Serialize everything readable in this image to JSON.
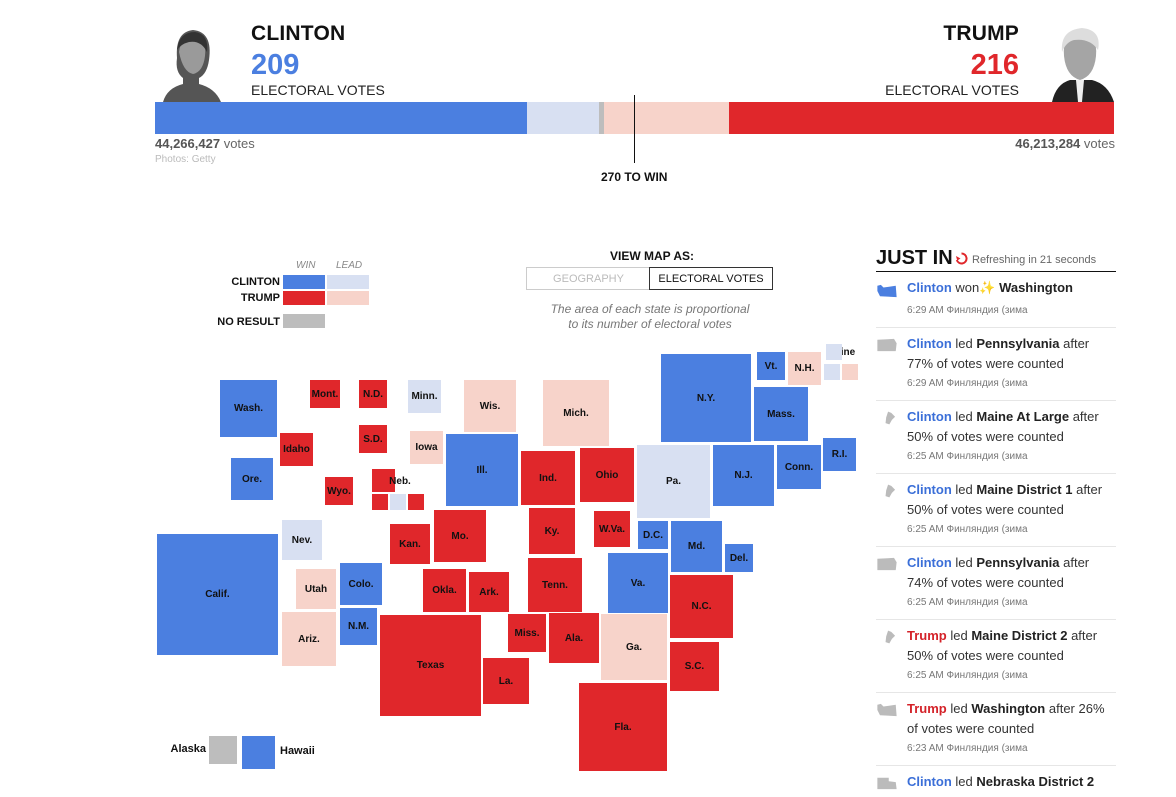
{
  "header": {
    "clinton": {
      "name": "CLINTON",
      "ev": "209",
      "ev_label": "ELECTORAL VOTES",
      "votes_num": "44,266,427",
      "votes_word": "votes",
      "color": "#4b7fe0"
    },
    "trump": {
      "name": "TRUMP",
      "ev": "216",
      "ev_label": "ELECTORAL VOTES",
      "votes_num": "46,213,284",
      "votes_word": "votes",
      "color": "#e0272b"
    },
    "photos_credit": "Photos: Getty",
    "to_win": "270 TO WIN"
  },
  "legend": {
    "win": "WIN",
    "lead": "LEAD",
    "clinton": "CLINTON",
    "trump": "TRUMP",
    "no_result": "NO RESULT"
  },
  "view_toggle": {
    "title": "VIEW MAP AS:",
    "geography": "GEOGRAPHY",
    "electoral": "ELECTORAL VOTES",
    "note_line1": "The area of each state is proportional",
    "note_line2": "to its number of electoral votes"
  },
  "states": {
    "wash": "Wash.",
    "mont": "Mont.",
    "nd": "N.D.",
    "minn": "Minn.",
    "wis": "Wis.",
    "mich": "Mich.",
    "ny": "N.Y.",
    "vt": "Vt.",
    "nh": "N.H.",
    "maine": "Maine",
    "idaho": "Idaho",
    "sd": "S.D.",
    "iowa": "Iowa",
    "mass": "Mass.",
    "ore": "Ore.",
    "wyo": "Wyo.",
    "neb": "Neb.",
    "ill": "Ill.",
    "ind": "Ind.",
    "ohio": "Ohio",
    "pa": "Pa.",
    "nj": "N.J.",
    "conn": "Conn.",
    "ri": "R.I.",
    "nev": "Nev.",
    "kan": "Kan.",
    "mo": "Mo.",
    "ky": "Ky.",
    "wva": "W.Va.",
    "dc": "D.C.",
    "md": "Md.",
    "del": "Del.",
    "calif": "Calif.",
    "utah": "Utah",
    "colo": "Colo.",
    "okla": "Okla.",
    "ark": "Ark.",
    "tenn": "Tenn.",
    "va": "Va.",
    "nc": "N.C.",
    "ariz": "Ariz.",
    "nm": "N.M.",
    "texas": "Texas",
    "miss": "Miss.",
    "ala": "Ala.",
    "ga": "Ga.",
    "sc": "S.C.",
    "la": "La.",
    "fla": "Fla.",
    "alaska": "Alaska",
    "hawaii": "Hawaii"
  },
  "just_in": {
    "title": "JUST IN",
    "refresh": "Refreshing in 21 seconds",
    "items": [
      {
        "who": "Clinton",
        "verb": "won",
        "place": "Washington",
        "after": "",
        "time": "6:29 AM Финляндия (зима",
        "icon": "washington-icon"
      },
      {
        "who": "Clinton",
        "verb": "led",
        "place": "Pennsylvania",
        "after": "after 77% of votes were counted",
        "time": "6:29 AM Финляндия (зима",
        "icon": "pennsylvania-icon"
      },
      {
        "who": "Clinton",
        "verb": "led",
        "place": "Maine At Large",
        "after": "after 50% of votes were counted",
        "time": "6:25 AM Финляндия (зима",
        "icon": "maine-icon"
      },
      {
        "who": "Clinton",
        "verb": "led",
        "place": "Maine District 1",
        "after": "after 50% of votes were counted",
        "time": "6:25 AM Финляндия (зима",
        "icon": "maine-icon"
      },
      {
        "who": "Clinton",
        "verb": "led",
        "place": "Pennsylvania",
        "after": "after 74% of votes were counted",
        "time": "6:25 AM Финляндия (зима",
        "icon": "pennsylvania-icon"
      },
      {
        "who": "Trump",
        "verb": "led",
        "place": "Maine District 2",
        "after": "after 50% of votes were counted",
        "time": "6:25 AM Финляндия (зима",
        "icon": "maine-icon"
      },
      {
        "who": "Trump",
        "verb": "led",
        "place": "Washington",
        "after": "after 26% of votes were counted",
        "time": "6:23 AM Финляндия (зима",
        "icon": "washington-icon"
      },
      {
        "who": "Clinton",
        "verb": "led",
        "place": "Nebraska District 2",
        "after": "",
        "time": "",
        "icon": "nebraska-icon"
      }
    ]
  }
}
